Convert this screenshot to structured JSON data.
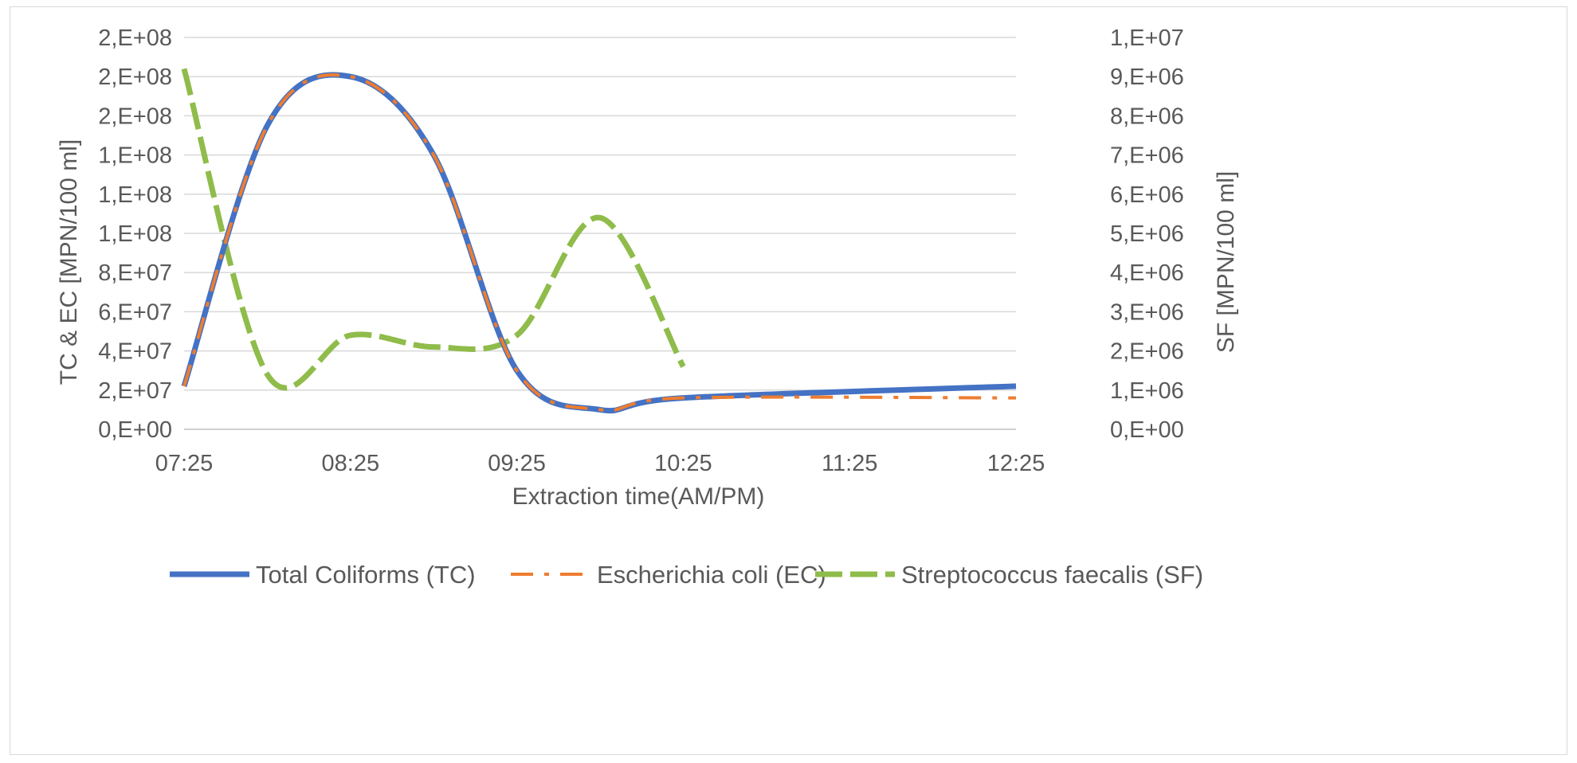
{
  "chart_data": {
    "type": "line",
    "title": "",
    "xlabel": "Extraction  time(AM/PM)",
    "ylabel_left": "TC  & EC  [MPN/100 ml]",
    "ylabel_right": "SF [MPN/100 ml]",
    "categories": [
      "07:25",
      "08:25",
      "09:25",
      "10:25",
      "11:25",
      "12:25"
    ],
    "x": [
      0,
      0.5,
      1,
      1.5,
      2,
      2.5,
      3,
      3.5,
      4,
      4.5,
      5
    ],
    "ylim_left": [
      0,
      200000000
    ],
    "ylim_right": [
      0,
      10000000
    ],
    "yticks_left": [
      "0,E+00",
      "2,E+07",
      "4,E+07",
      "6,E+07",
      "8,E+07",
      "1,E+08",
      "1,E+08",
      "1,E+08",
      "2,E+08",
      "2,E+08",
      "2,E+08"
    ],
    "yticks_right": [
      "0,E+00",
      "1,E+06",
      "2,E+06",
      "3,E+06",
      "4,E+06",
      "5,E+06",
      "6,E+06",
      "7,E+06",
      "8,E+06",
      "9,E+06",
      "1,E+07"
    ],
    "grid": true,
    "legend_position": "bottom",
    "series": [
      {
        "name": "Total Coliforms (TC)",
        "axis": "left",
        "color": "#4472C4",
        "style": "solid",
        "values": [
          22000000,
          155000000,
          180000000,
          140000000,
          30000000,
          10000000,
          16000000,
          null,
          null,
          null,
          22000000
        ]
      },
      {
        "name": "Escherichia coli (EC)",
        "axis": "left",
        "color": "#ED7D31",
        "style": "dashdot",
        "values": [
          22000000,
          155000000,
          180000000,
          140000000,
          30000000,
          10000000,
          16000000,
          null,
          null,
          null,
          16000000
        ]
      },
      {
        "name": "Streptococcus faecalis (SF)",
        "axis": "right",
        "color": "#8FBC4A",
        "style": "dashed",
        "values": [
          9200000,
          1400000,
          2400000,
          2100000,
          2400000,
          5400000,
          1600000,
          null,
          null,
          null,
          null
        ]
      }
    ]
  }
}
